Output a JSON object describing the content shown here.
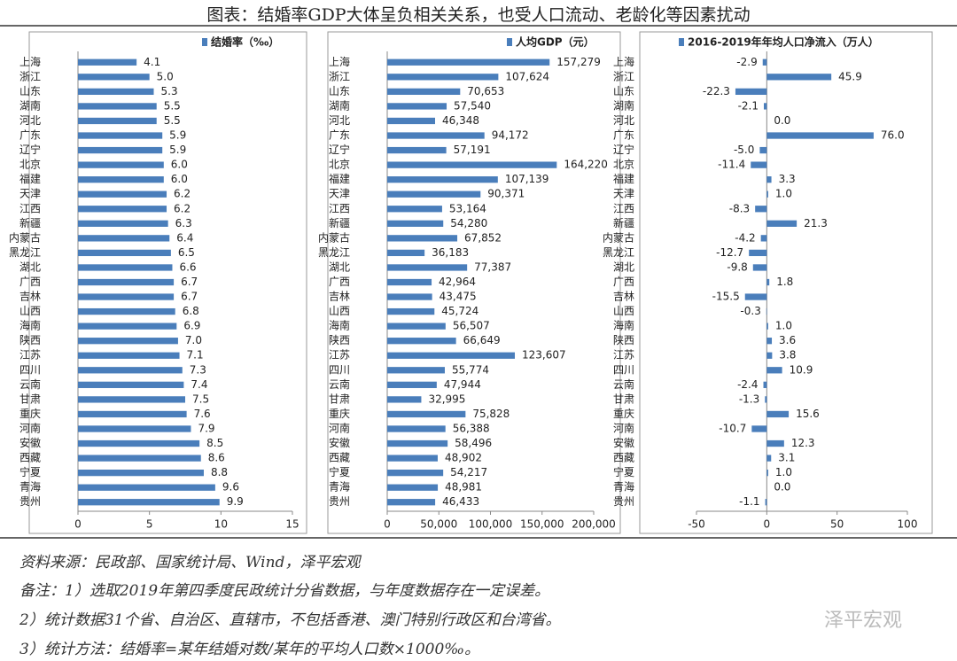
{
  "title": "图表：结婚率GDP大体呈负相关关系，也受人口流动、老龄化等因素扰动",
  "chart_data": [
    {
      "type": "hbar",
      "categories": [
        "上海",
        "浙江",
        "山东",
        "湖南",
        "河北",
        "广东",
        "辽宁",
        "北京",
        "福建",
        "天津",
        "江西",
        "新疆",
        "内蒙古",
        "黑龙江",
        "湖北",
        "广西",
        "吉林",
        "山西",
        "海南",
        "陕西",
        "江苏",
        "四川",
        "云南",
        "甘肃",
        "重庆",
        "河南",
        "安徽",
        "西藏",
        "宁夏",
        "青海",
        "贵州"
      ],
      "series": [
        {
          "name": "结婚率（‰）",
          "color": "#4a7ebb",
          "values": [
            4.1,
            5.0,
            5.3,
            5.5,
            5.5,
            5.9,
            5.9,
            6.0,
            6.0,
            6.2,
            6.2,
            6.3,
            6.4,
            6.5,
            6.6,
            6.7,
            6.7,
            6.8,
            6.9,
            7.0,
            7.1,
            7.3,
            7.4,
            7.5,
            7.6,
            7.9,
            8.5,
            8.6,
            8.8,
            9.6,
            9.9
          ],
          "value_labels": [
            "4.1",
            "5.0",
            "5.3",
            "5.5",
            "5.5",
            "5.9",
            "5.9",
            "6.0",
            "6.0",
            "6.2",
            "6.2",
            "6.3",
            "6.4",
            "6.5",
            "6.6",
            "6.7",
            "6.7",
            "6.8",
            "6.9",
            "7.0",
            "7.1",
            "7.3",
            "7.4",
            "7.5",
            "7.6",
            "7.9",
            "8.5",
            "8.6",
            "8.8",
            "9.6",
            "9.9"
          ]
        }
      ],
      "xlim": [
        0,
        15
      ],
      "xticks": [
        0,
        5,
        10,
        15
      ]
    },
    {
      "type": "hbar",
      "categories": [
        "上海",
        "浙江",
        "山东",
        "湖南",
        "河北",
        "广东",
        "辽宁",
        "北京",
        "福建",
        "天津",
        "江西",
        "新疆",
        "内蒙古",
        "黑龙江",
        "湖北",
        "广西",
        "吉林",
        "山西",
        "海南",
        "陕西",
        "江苏",
        "四川",
        "云南",
        "甘肃",
        "重庆",
        "河南",
        "安徽",
        "西藏",
        "宁夏",
        "青海",
        "贵州"
      ],
      "series": [
        {
          "name": "人均GDP（元）",
          "color": "#4a7ebb",
          "values": [
            157279,
            107624,
            70653,
            57540,
            46348,
            94172,
            57191,
            164220,
            107139,
            90371,
            53164,
            54280,
            67852,
            36183,
            77387,
            42964,
            43475,
            45724,
            56507,
            66649,
            123607,
            55774,
            47944,
            32995,
            75828,
            56388,
            58496,
            48902,
            54217,
            48981,
            46433
          ],
          "value_labels": [
            "157,279",
            "107,624",
            "70,653",
            "57,540",
            "46,348",
            "94,172",
            "57,191",
            "164,220",
            "107,139",
            "90,371",
            "53,164",
            "54,280",
            "67,852",
            "36,183",
            "77,387",
            "42,964",
            "43,475",
            "45,724",
            "56,507",
            "66,649",
            "123,607",
            "55,774",
            "47,944",
            "32,995",
            "75,828",
            "56,388",
            "58,496",
            "48,902",
            "54,217",
            "48,981",
            "46,433"
          ]
        }
      ],
      "xlim": [
        0,
        200000
      ],
      "xticks": [
        0,
        {
          "value": 50000,
          "label": "50,000"
        },
        {
          "value": 100000,
          "label": "100,000"
        },
        {
          "value": 150000,
          "label": "150,000"
        },
        {
          "value": 200000,
          "label": "200,000"
        }
      ]
    },
    {
      "type": "hbar",
      "categories": [
        "上海",
        "浙江",
        "山东",
        "湖南",
        "河北",
        "广东",
        "辽宁",
        "北京",
        "福建",
        "天津",
        "江西",
        "新疆",
        "内蒙古",
        "黑龙江",
        "湖北",
        "广西",
        "吉林",
        "山西",
        "海南",
        "陕西",
        "江苏",
        "四川",
        "云南",
        "甘肃",
        "重庆",
        "河南",
        "安徽",
        "西藏",
        "宁夏",
        "青海",
        "贵州"
      ],
      "series": [
        {
          "name": "2016-2019年年均人口净流入（万人）",
          "color": "#4a7ebb",
          "values": [
            -2.9,
            45.9,
            -22.3,
            -2.1,
            0.0,
            76.0,
            -5.0,
            -11.4,
            3.3,
            1.0,
            -8.3,
            21.3,
            -4.2,
            -12.7,
            -9.8,
            1.8,
            -15.5,
            -0.3,
            1.0,
            3.6,
            3.8,
            10.9,
            -2.4,
            -1.3,
            15.6,
            -10.7,
            12.3,
            3.1,
            1.0,
            0.0,
            -1.1
          ],
          "value_labels": [
            "-2.9",
            "45.9",
            "-22.3",
            "-2.1",
            "0.0",
            "76.0",
            "-5.0",
            "-11.4",
            "3.3",
            "1.0",
            "-8.3",
            "21.3",
            "-4.2",
            "-12.7",
            "-9.8",
            "1.8",
            "-15.5",
            "-0.3",
            "1.0",
            "3.6",
            "3.8",
            "10.9",
            "-2.4",
            "-1.3",
            "15.6",
            "-10.7",
            "12.3",
            "3.1",
            "1.0",
            "0.0",
            "-1.1"
          ]
        }
      ],
      "xlim": [
        -50,
        100
      ],
      "xticks": [
        -50,
        0,
        50,
        100
      ]
    }
  ],
  "footer": {
    "source": "资料来源：民政部、国家统计局、Wind，泽平宏观",
    "notes": [
      "备注：1）选取2019年第四季度民政统计分省数据，与年度数据存在一定误差。",
      "2）统计数据31个省、自治区、直辖市，不包括香港、澳门特别行政区和台湾省。",
      "3）统计方法：结婚率=某年结婚对数/某年的平均人口数×1000‰。"
    ]
  },
  "watermark": "泽平宏观"
}
